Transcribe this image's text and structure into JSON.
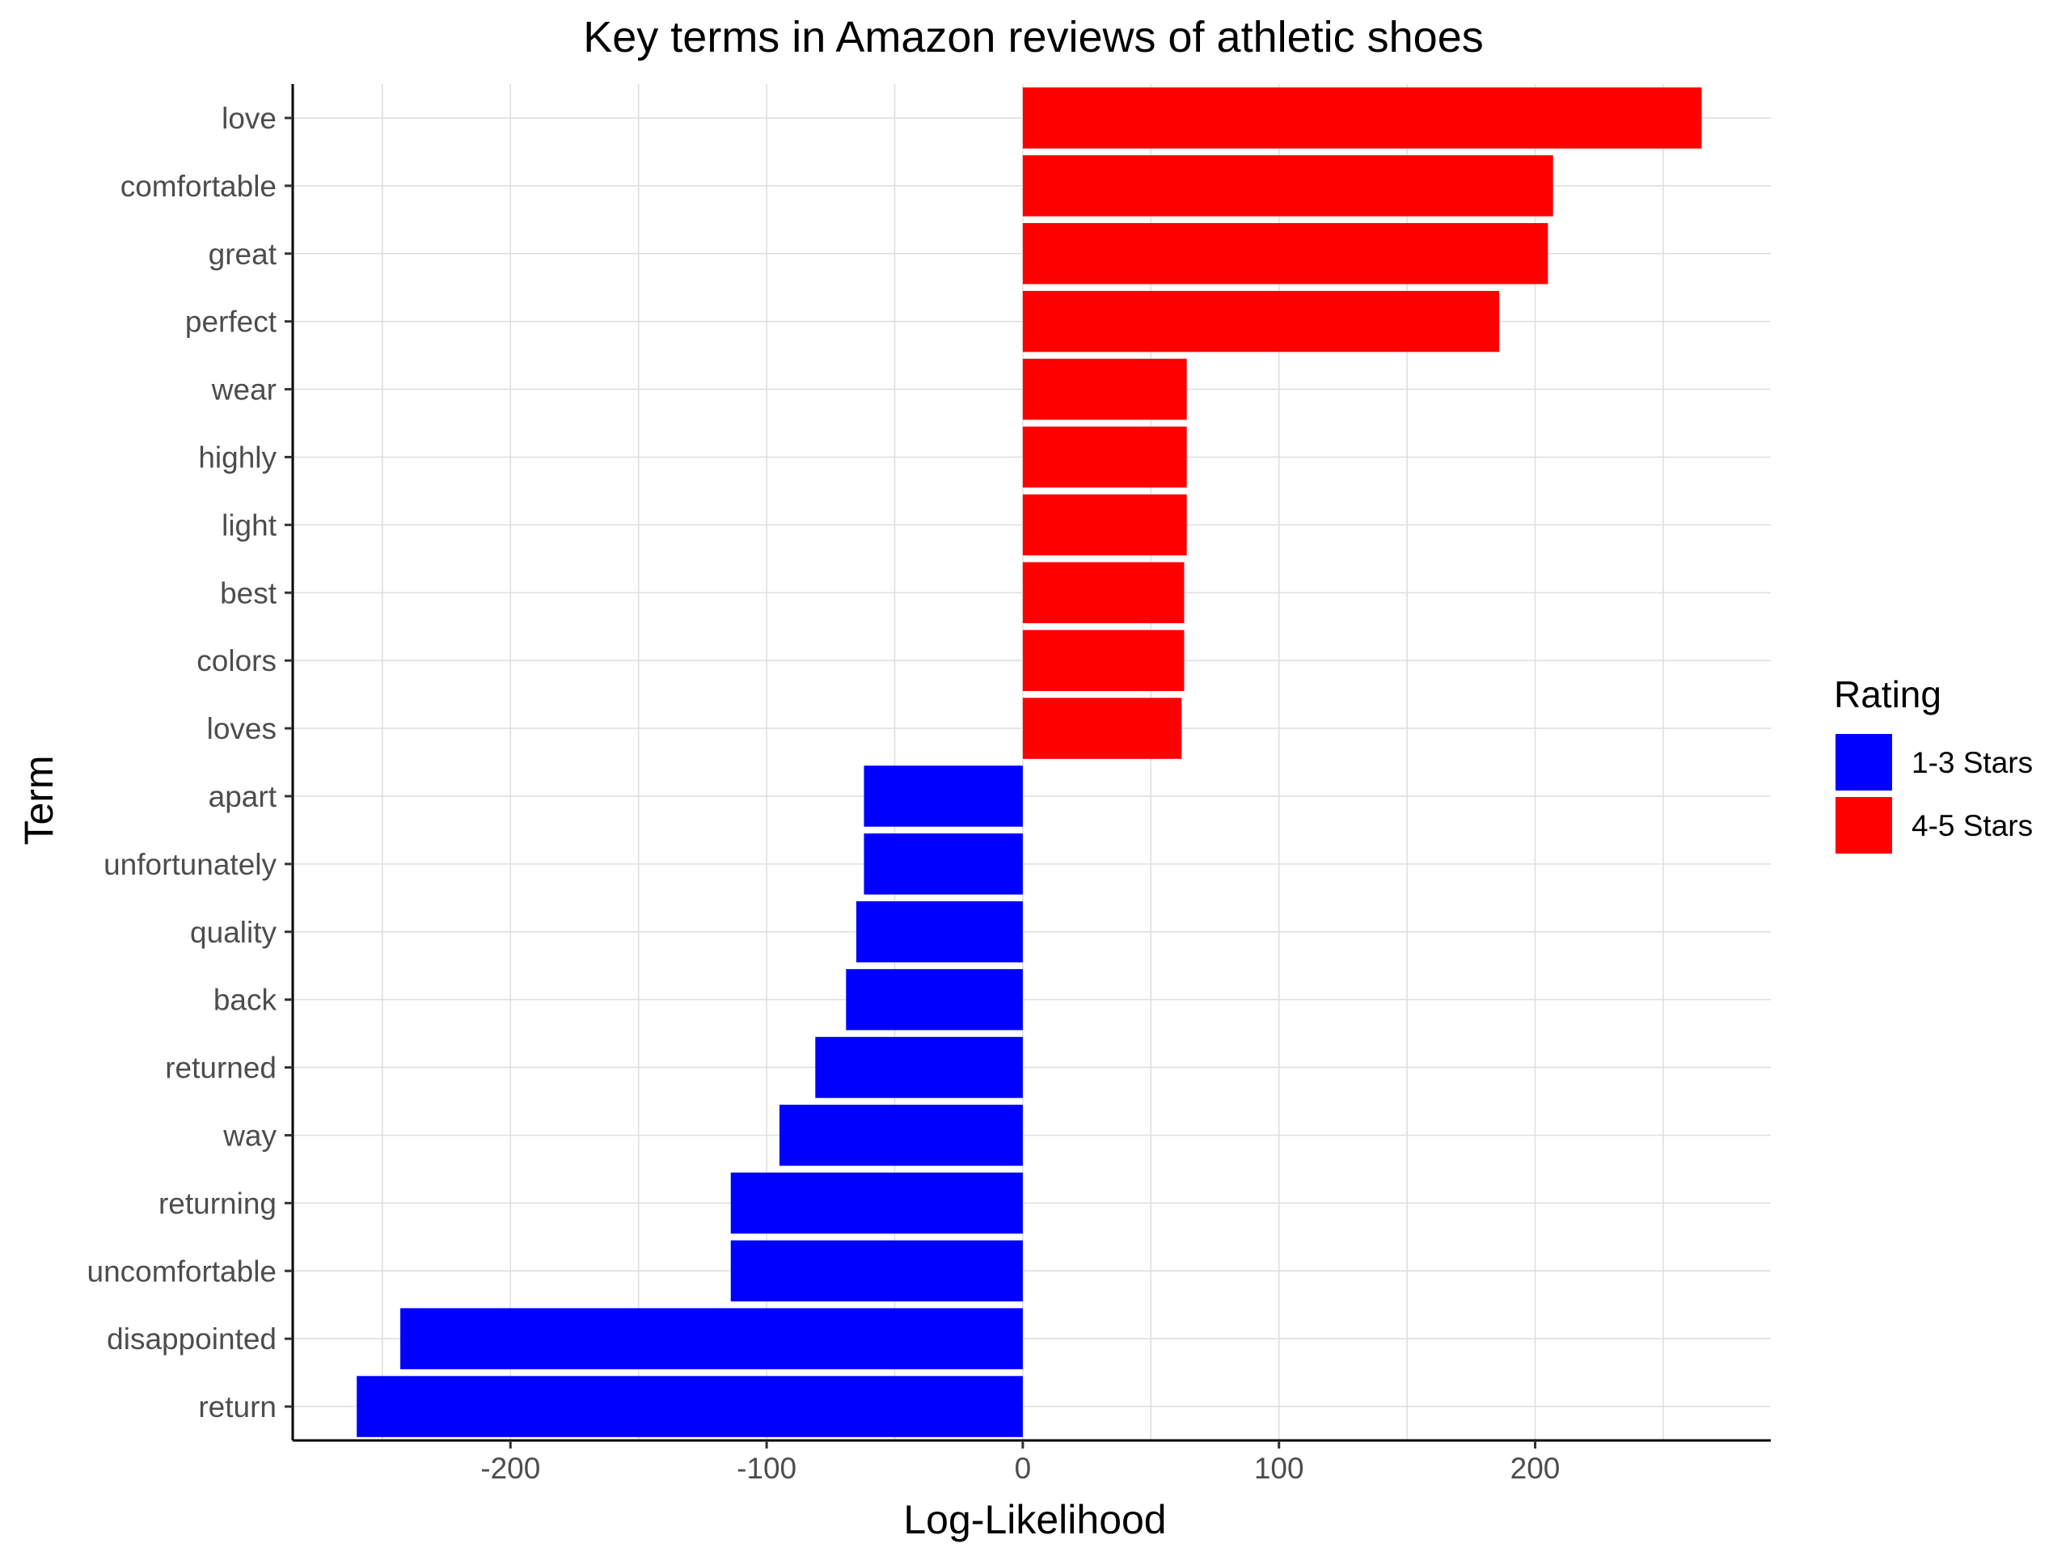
{
  "chart_data": {
    "type": "bar",
    "orientation": "horizontal",
    "title": "Key terms in Amazon reviews of athletic shoes",
    "xlabel": "Log-Likelihood",
    "ylabel": "Term",
    "xlim": [
      -285,
      292
    ],
    "x_ticks": [
      -200,
      -100,
      0,
      100,
      200
    ],
    "x_tick_labels": [
      "-200",
      "-100",
      "0",
      "100",
      "200"
    ],
    "grid": true,
    "legend": {
      "title": "Rating",
      "position": "right",
      "entries": [
        {
          "label": "1-3 Stars",
          "color": "#0000ff"
        },
        {
          "label": "4-5 Stars",
          "color": "#ff0000"
        }
      ]
    },
    "categories": [
      "love",
      "comfortable",
      "great",
      "perfect",
      "wear",
      "highly",
      "light",
      "best",
      "colors",
      "loves",
      "apart",
      "unfortunately",
      "quality",
      "back",
      "returned",
      "way",
      "returning",
      "uncomfortable",
      "disappointed",
      "return"
    ],
    "values": [
      265,
      207,
      205,
      186,
      64,
      64,
      64,
      63,
      63,
      62,
      -62,
      -62,
      -65,
      -69,
      -81,
      -95,
      -114,
      -114,
      -243,
      -260
    ],
    "rating": [
      "4-5 Stars",
      "4-5 Stars",
      "4-5 Stars",
      "4-5 Stars",
      "4-5 Stars",
      "4-5 Stars",
      "4-5 Stars",
      "4-5 Stars",
      "4-5 Stars",
      "4-5 Stars",
      "1-3 Stars",
      "1-3 Stars",
      "1-3 Stars",
      "1-3 Stars",
      "1-3 Stars",
      "1-3 Stars",
      "1-3 Stars",
      "1-3 Stars",
      "1-3 Stars",
      "1-3 Stars"
    ]
  }
}
